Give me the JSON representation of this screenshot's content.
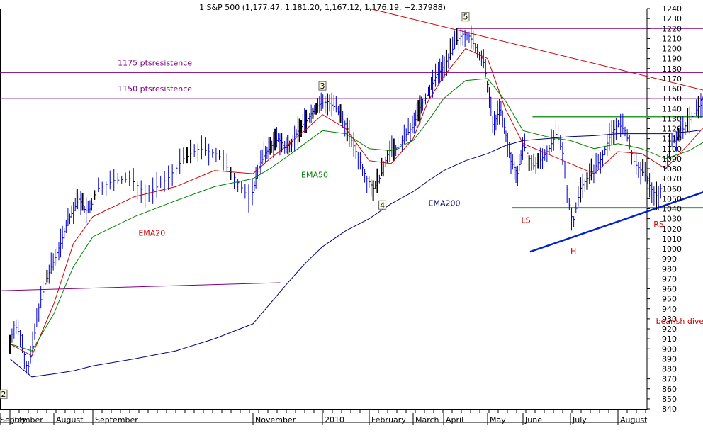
{
  "chart_data": {
    "type": "line",
    "title": "1 S&P 500 (1,177.47, 1,181.20, 1,167.12, 1,176.19, +2.37988)",
    "ylim": [
      840,
      1240
    ],
    "yticks": [
      840,
      850,
      860,
      870,
      880,
      890,
      900,
      910,
      920,
      930,
      940,
      950,
      960,
      970,
      980,
      990,
      1000,
      1010,
      1020,
      1030,
      1040,
      1050,
      1060,
      1070,
      1080,
      1090,
      1100,
      1110,
      1120,
      1130,
      1140,
      1150,
      1160,
      1170,
      1180,
      1190,
      1200,
      1210,
      1220,
      1230,
      1240
    ],
    "months": [
      {
        "label": "July",
        "pos": 0
      },
      {
        "label": "August",
        "pos": 1
      },
      {
        "label": "September",
        "pos": 2
      },
      {
        "label": "November",
        "pos": 4
      },
      {
        "label": "2010",
        "pos": 6
      },
      {
        "label": "February",
        "pos": 7
      },
      {
        "label": "March",
        "pos": 8
      },
      {
        "label": "April",
        "pos": 9
      },
      {
        "label": "May",
        "pos": 10
      },
      {
        "label": "June",
        "pos": 11
      },
      {
        "label": "July",
        "pos": 12
      },
      {
        "label": "August",
        "pos": 13
      },
      {
        "label": "September",
        "pos": 14
      }
    ],
    "price": [
      [
        0,
        905
      ],
      [
        0.1,
        925
      ],
      [
        0.25,
        912
      ],
      [
        0.4,
        878
      ],
      [
        0.5,
        898
      ],
      [
        0.65,
        940
      ],
      [
        0.8,
        965
      ],
      [
        0.95,
        983
      ],
      [
        1.1,
        998
      ],
      [
        1.2,
        1008
      ],
      [
        1.35,
        1028
      ],
      [
        1.5,
        1038
      ],
      [
        1.65,
        1050
      ],
      [
        1.8,
        1038
      ],
      [
        1.95,
        1040
      ],
      [
        2.05,
        1060
      ],
      [
        2.25,
        1068
      ],
      [
        2.45,
        1070
      ],
      [
        2.65,
        1054
      ],
      [
        2.9,
        1070
      ],
      [
        3.1,
        1090
      ],
      [
        3.3,
        1100
      ],
      [
        3.55,
        1094
      ],
      [
        3.75,
        1072
      ],
      [
        3.95,
        1050
      ],
      [
        4.15,
        1080
      ],
      [
        4.35,
        1095
      ],
      [
        4.55,
        1103
      ],
      [
        4.75,
        1110
      ],
      [
        4.95,
        1100
      ],
      [
        5.15,
        1108
      ],
      [
        5.35,
        1120
      ],
      [
        5.55,
        1128
      ],
      [
        5.75,
        1138
      ],
      [
        5.9,
        1144
      ],
      [
        6.1,
        1147
      ],
      [
        6.3,
        1140
      ],
      [
        6.5,
        1123
      ],
      [
        6.75,
        1093
      ],
      [
        6.95,
        1070
      ],
      [
        7.1,
        1060
      ],
      [
        7.25,
        1072
      ],
      [
        7.45,
        1098
      ],
      [
        7.65,
        1100
      ],
      [
        7.8,
        1112
      ],
      [
        8.0,
        1122
      ],
      [
        8.2,
        1140
      ],
      [
        8.4,
        1150
      ],
      [
        8.6,
        1163
      ],
      [
        8.8,
        1175
      ],
      [
        8.95,
        1180
      ],
      [
        9.1,
        1190
      ],
      [
        9.3,
        1208
      ],
      [
        9.45,
        1215
      ],
      [
        9.6,
        1212
      ],
      [
        9.75,
        1198
      ],
      [
        9.9,
        1188
      ],
      [
        10.02,
        1160
      ],
      [
        10.15,
        1122
      ],
      [
        10.35,
        1140
      ],
      [
        10.5,
        1117
      ],
      [
        10.65,
        1088
      ],
      [
        10.85,
        1075
      ],
      [
        11.0,
        1105
      ],
      [
        11.2,
        1082
      ],
      [
        11.4,
        1090
      ],
      [
        11.55,
        1100
      ],
      [
        11.7,
        1115
      ],
      [
        11.85,
        1093
      ],
      [
        11.95,
        1050
      ],
      [
        12.05,
        1025
      ],
      [
        12.2,
        1060
      ],
      [
        12.45,
        1077
      ],
      [
        12.65,
        1090
      ],
      [
        12.85,
        1115
      ],
      [
        13.0,
        1125
      ],
      [
        13.15,
        1118
      ],
      [
        13.35,
        1085
      ],
      [
        13.55,
        1075
      ],
      [
        13.7,
        1060
      ],
      [
        13.85,
        1050
      ],
      [
        13.95,
        1070
      ],
      [
        14.1,
        1105
      ],
      [
        14.3,
        1115
      ],
      [
        14.5,
        1128
      ],
      [
        14.7,
        1142
      ],
      [
        14.9,
        1148
      ],
      [
        15.1,
        1160
      ],
      [
        15.3,
        1172
      ],
      [
        15.45,
        1176
      ]
    ],
    "ema20": [
      [
        0,
        905
      ],
      [
        0.5,
        893
      ],
      [
        1.0,
        945
      ],
      [
        1.5,
        1005
      ],
      [
        2.0,
        1032
      ],
      [
        2.5,
        1052
      ],
      [
        3.0,
        1062
      ],
      [
        3.5,
        1078
      ],
      [
        4.0,
        1075
      ],
      [
        4.5,
        1090
      ],
      [
        5.0,
        1103
      ],
      [
        5.5,
        1118
      ],
      [
        6.0,
        1134
      ],
      [
        6.5,
        1120
      ],
      [
        7.0,
        1088
      ],
      [
        7.5,
        1085
      ],
      [
        8.0,
        1110
      ],
      [
        8.5,
        1148
      ],
      [
        9.0,
        1172
      ],
      [
        9.5,
        1200
      ],
      [
        10.0,
        1190
      ],
      [
        10.5,
        1140
      ],
      [
        11.0,
        1105
      ],
      [
        11.5,
        1095
      ],
      [
        12.0,
        1085
      ],
      [
        12.5,
        1075
      ],
      [
        13.0,
        1097
      ],
      [
        13.5,
        1095
      ],
      [
        14.0,
        1080
      ],
      [
        14.5,
        1105
      ],
      [
        15.0,
        1132
      ],
      [
        15.45,
        1150
      ]
    ],
    "ema50": [
      [
        0,
        905
      ],
      [
        0.5,
        898
      ],
      [
        1.0,
        935
      ],
      [
        1.5,
        982
      ],
      [
        2.0,
        1012
      ],
      [
        2.5,
        1032
      ],
      [
        3.0,
        1048
      ],
      [
        3.5,
        1062
      ],
      [
        4.0,
        1070
      ],
      [
        4.5,
        1080
      ],
      [
        5.0,
        1092
      ],
      [
        5.5,
        1105
      ],
      [
        6.0,
        1118
      ],
      [
        6.5,
        1115
      ],
      [
        7.0,
        1100
      ],
      [
        7.5,
        1098
      ],
      [
        8.0,
        1108
      ],
      [
        8.5,
        1128
      ],
      [
        9.0,
        1150
      ],
      [
        9.5,
        1168
      ],
      [
        10.0,
        1170
      ],
      [
        10.5,
        1148
      ],
      [
        11.0,
        1118
      ],
      [
        11.5,
        1112
      ],
      [
        12.0,
        1108
      ],
      [
        12.5,
        1100
      ],
      [
        13.0,
        1105
      ],
      [
        13.5,
        1100
      ],
      [
        14.0,
        1090
      ],
      [
        14.5,
        1098
      ],
      [
        15.0,
        1112
      ],
      [
        15.45,
        1125
      ]
    ],
    "ema200": [
      [
        0,
        890
      ],
      [
        0.5,
        872
      ],
      [
        1.0,
        875
      ],
      [
        1.5,
        878
      ],
      [
        2.0,
        883
      ],
      [
        2.5,
        890
      ],
      [
        3.0,
        898
      ],
      [
        3.5,
        910
      ],
      [
        4.0,
        925
      ],
      [
        4.5,
        945
      ],
      [
        5.0,
        965
      ],
      [
        5.5,
        985
      ],
      [
        6.0,
        1002
      ],
      [
        6.5,
        1018
      ],
      [
        7.0,
        1030
      ],
      [
        7.5,
        1045
      ],
      [
        8.0,
        1057
      ],
      [
        8.5,
        1068
      ],
      [
        9.0,
        1078
      ],
      [
        9.5,
        1088
      ],
      [
        10.0,
        1095
      ],
      [
        10.5,
        1103
      ],
      [
        11.0,
        1108
      ],
      [
        11.5,
        1110
      ],
      [
        12.0,
        1112
      ],
      [
        12.5,
        1113
      ],
      [
        13.0,
        1115
      ],
      [
        13.5,
        1115
      ],
      [
        14.0,
        1115
      ],
      [
        14.5,
        1117
      ],
      [
        15.0,
        1120
      ],
      [
        15.45,
        1121
      ]
    ],
    "lines": [
      {
        "name": "1220 level",
        "color": "#800080",
        "width": 1,
        "p": [
          [
            9.3,
            1220
          ],
          [
            15.8,
            1220
          ]
        ]
      },
      {
        "name": "1175 resistance",
        "color": "#800080",
        "width": 1,
        "p": [
          [
            -0.3,
            1176
          ],
          [
            15.8,
            1176
          ]
        ]
      },
      {
        "name": "1150 resistance",
        "color": "#800080",
        "width": 1,
        "p": [
          [
            -0.3,
            1150
          ],
          [
            15.8,
            1150
          ]
        ]
      },
      {
        "name": "old support",
        "color": "#800080",
        "width": 1,
        "p": [
          [
            -0.3,
            958
          ],
          [
            4.8,
            966
          ]
        ]
      },
      {
        "name": "downtrend",
        "color": "#cc0000",
        "width": 1,
        "p": [
          [
            7.0,
            1240
          ],
          [
            15.1,
            1155
          ]
        ]
      },
      {
        "name": "neckline",
        "color": "#2e9a2e",
        "width": 2,
        "p": [
          [
            11.2,
            1132
          ],
          [
            15.5,
            1132
          ]
        ]
      },
      {
        "name": "base",
        "color": "#2e9a2e",
        "width": 2,
        "p": [
          [
            10.7,
            1041
          ],
          [
            15.3,
            1041
          ]
        ]
      },
      {
        "name": "uptrend",
        "color": "#0022cc",
        "width": 2.5,
        "p": [
          [
            11.15,
            997
          ],
          [
            15.5,
            1068
          ]
        ]
      },
      {
        "name": "upper channel",
        "color": "#cc0000",
        "width": 2,
        "p": [
          [
            14.75,
            1148
          ],
          [
            15.45,
            1190
          ]
        ]
      }
    ],
    "annotations": [
      {
        "text": "1175 ptsresistence",
        "x": 2.3,
        "y": 1183,
        "color": "#800080"
      },
      {
        "text": "1150 ptsresistence",
        "x": 2.3,
        "y": 1157,
        "color": "#800080"
      },
      {
        "text": "EMA50",
        "x": 5.4,
        "y": 1071,
        "color": "#008000"
      },
      {
        "text": "EMA200",
        "x": 8.5,
        "y": 1043,
        "color": "#000080"
      },
      {
        "text": "EMA20",
        "x": 2.55,
        "y": 1013,
        "color": "#cc0000"
      },
      {
        "text": "LS",
        "x": 10.95,
        "y": 1026,
        "color": "#cc0000"
      },
      {
        "text": "RS",
        "x": 13.75,
        "y": 1022,
        "color": "#cc0000"
      },
      {
        "text": "H",
        "x": 12.0,
        "y": 995,
        "color": "#cc0000"
      },
      {
        "text": "bearish divergence",
        "x": 13.8,
        "y": 925,
        "color": "#cc0000"
      }
    ],
    "markers": [
      {
        "text": "5",
        "x": 9.5,
        "y": 1231
      },
      {
        "text": "3",
        "x": 6.0,
        "y": 1162
      },
      {
        "text": "4",
        "x": 7.3,
        "y": 1043
      },
      {
        "text": "2",
        "x": -0.3,
        "y": 854
      }
    ]
  }
}
